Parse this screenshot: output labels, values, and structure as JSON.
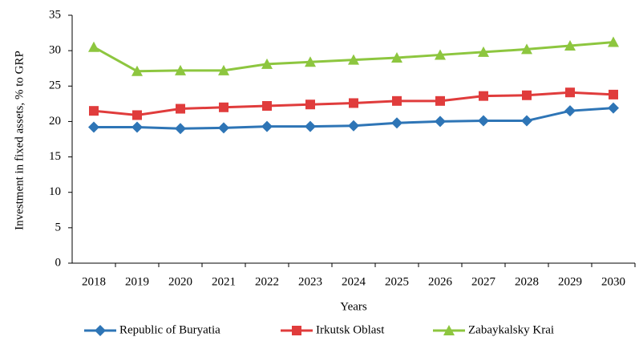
{
  "chart_data": {
    "type": "line",
    "y_label": "Investment in fixed assets, % to GRP",
    "x_label": "Years",
    "categories": [
      "2018",
      "2019",
      "2020",
      "2021",
      "2022",
      "2023",
      "2024",
      "2025",
      "2026",
      "2027",
      "2028",
      "2029",
      "2030"
    ],
    "series": [
      {
        "name": "Republic of Buryatia",
        "color": "#2e75b6",
        "marker": "diamond",
        "values": [
          19.2,
          19.2,
          19.0,
          19.1,
          19.3,
          19.3,
          19.4,
          19.8,
          20.0,
          20.1,
          20.1,
          21.5,
          21.9
        ]
      },
      {
        "name": "Irkutsk Oblast",
        "color": "#e03c3c",
        "marker": "square",
        "values": [
          21.5,
          20.9,
          21.8,
          22.0,
          22.2,
          22.4,
          22.6,
          22.9,
          22.9,
          23.6,
          23.7,
          24.1,
          23.8
        ]
      },
      {
        "name": "Zabaykalsky Krai",
        "color": "#8dc63f",
        "marker": "triangle",
        "values": [
          30.5,
          27.1,
          27.2,
          27.2,
          28.1,
          28.4,
          28.7,
          29.0,
          29.4,
          29.8,
          30.2,
          30.7,
          31.2
        ]
      }
    ],
    "ylim": [
      0,
      35
    ],
    "yticks": [
      0,
      5,
      10,
      15,
      20,
      25,
      30,
      35
    ],
    "grid": false,
    "legend": "bottom"
  }
}
